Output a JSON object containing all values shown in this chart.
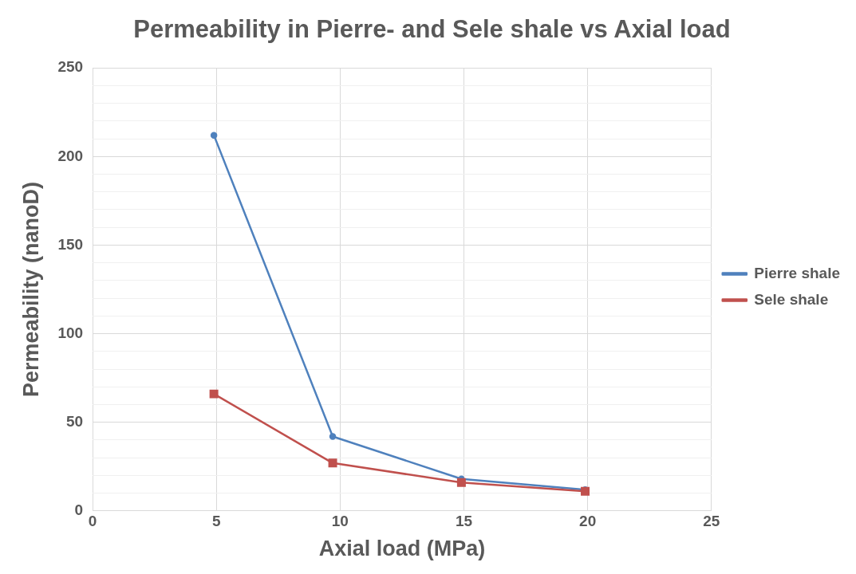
{
  "chart_data": {
    "type": "line",
    "title": "Permeability in Pierre- and Sele shale vs Axial load",
    "xlabel": "Axial load (MPa)",
    "ylabel": "Permeability (nanoD)",
    "series": [
      {
        "name": "Pierre shale",
        "color": "#4f81bd",
        "marker": "circle",
        "x": [
          4.9,
          9.7,
          14.9,
          19.9
        ],
        "values": [
          212,
          42,
          18,
          12
        ]
      },
      {
        "name": "Sele shale",
        "color": "#c0504d",
        "marker": "square",
        "x": [
          4.9,
          9.7,
          14.9,
          19.9
        ],
        "values": [
          66,
          27,
          16,
          11
        ]
      }
    ],
    "xlim": [
      0,
      25
    ],
    "xticks": [
      0,
      5,
      10,
      15,
      20,
      25
    ],
    "ylim": [
      0,
      250
    ],
    "yticks": [
      0,
      {
        "value": 10,
        "label": null
      },
      {
        "value": 20,
        "label": null
      },
      {
        "value": 30,
        "label": null
      },
      {
        "value": 40,
        "label": null
      },
      50,
      {
        "value": 60,
        "label": null
      },
      {
        "value": 70,
        "label": null
      },
      {
        "value": 80,
        "label": null
      },
      {
        "value": 90,
        "label": null
      },
      100,
      {
        "value": 110,
        "label": null
      },
      {
        "value": 120,
        "label": null
      },
      {
        "value": 130,
        "label": null
      },
      {
        "value": 140,
        "label": null
      },
      150,
      {
        "value": 160,
        "label": null
      },
      {
        "value": 170,
        "label": null
      },
      {
        "value": 180,
        "label": null
      },
      {
        "value": 190,
        "label": null
      },
      200,
      {
        "value": 210,
        "label": null
      },
      {
        "value": 220,
        "label": null
      },
      {
        "value": 230,
        "label": null
      },
      {
        "value": 240,
        "label": null
      },
      250
    ],
    "grid": true,
    "legend": "right",
    "line_style": "solid"
  }
}
